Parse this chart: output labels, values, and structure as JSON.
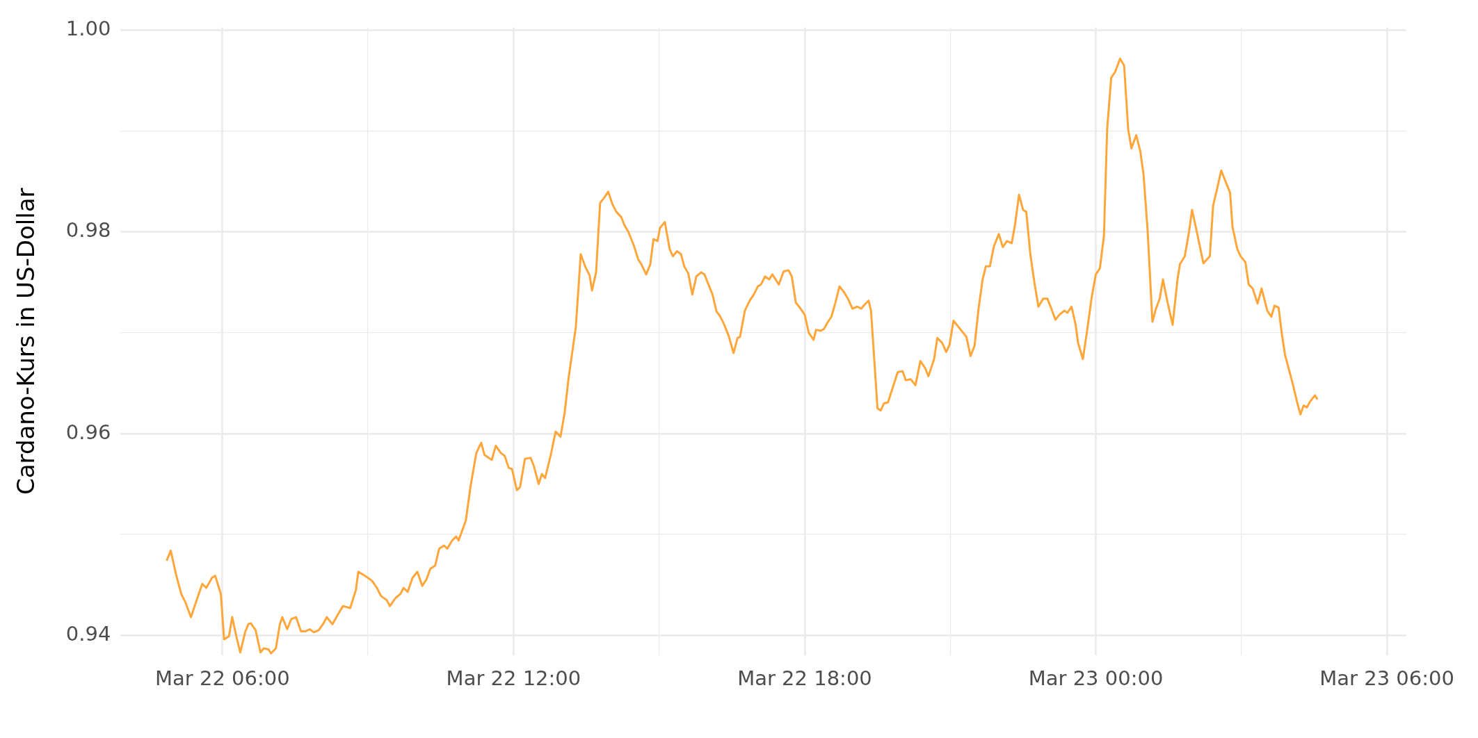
{
  "chart_data": {
    "type": "line",
    "ylabel": "Cardano-Kurs in US-Dollar",
    "x": [
      "--03-22T04:51",
      "--03-22T04:56",
      "--03-22T05:03",
      "--03-22T05:09",
      "--03-22T05:14",
      "--03-22T05:21",
      "--03-22T05:29",
      "--03-22T05:35",
      "--03-22T05:40",
      "--03-22T05:47",
      "--03-22T05:51",
      "--03-22T05:58",
      "--03-22T06:02",
      "--03-22T06:08",
      "--03-22T06:12",
      "--03-22T06:18",
      "--03-22T06:22",
      "--03-22T06:28",
      "--03-22T06:32",
      "--03-22T06:35",
      "--03-22T06:41",
      "--03-22T06:47",
      "--03-22T06:51",
      "--03-22T06:57",
      "--03-22T07:00",
      "--03-22T07:06",
      "--03-22T07:11",
      "--03-22T07:14",
      "--03-22T07:20",
      "--03-22T07:25",
      "--03-22T07:31",
      "--03-22T07:37",
      "--03-22T07:43",
      "--03-22T07:48",
      "--03-22T07:53",
      "--03-22T07:59",
      "--03-22T08:05",
      "--03-22T08:09",
      "--03-22T08:16",
      "--03-22T08:23",
      "--03-22T08:29",
      "--03-22T08:38",
      "--03-22T08:45",
      "--03-22T08:48",
      "--03-22T08:58",
      "--03-22T09:05",
      "--03-22T09:11",
      "--03-22T09:16",
      "--03-22T09:23",
      "--03-22T09:27",
      "--03-22T09:34",
      "--03-22T09:40",
      "--03-22T09:44",
      "--03-22T09:49",
      "--03-22T09:55",
      "--03-22T10:01",
      "--03-22T10:07",
      "--03-22T10:12",
      "--03-22T10:17",
      "--03-22T10:23",
      "--03-22T10:28",
      "--03-22T10:34",
      "--03-22T10:38",
      "--03-22T10:44",
      "--03-22T10:49",
      "--03-22T10:52",
      "--03-22T11:01",
      "--03-22T11:07",
      "--03-22T11:14",
      "--03-22T11:20",
      "--03-22T11:24",
      "--03-22T11:31",
      "--03-22T11:33",
      "--03-22T11:38",
      "--03-22T11:44",
      "--03-22T11:49",
      "--03-22T11:54",
      "--03-22T11:58",
      "--03-22T12:04",
      "--03-22T12:08",
      "--03-22T12:14",
      "--03-22T12:21",
      "--03-22T12:25",
      "--03-22T12:31",
      "--03-22T12:35",
      "--03-22T12:39",
      "--03-22T12:46",
      "--03-22T12:52",
      "--03-22T12:58",
      "--03-22T13:03",
      "--03-22T13:08",
      "--03-22T13:17",
      "--03-22T13:23",
      "--03-22T13:29",
      "--03-22T13:34",
      "--03-22T13:37",
      "--03-22T13:42",
      "--03-22T13:47",
      "--03-22T13:52",
      "--03-22T13:57",
      "--03-22T14:02",
      "--03-22T14:07",
      "--03-22T14:13",
      "--03-22T14:17",
      "--03-22T14:22",
      "--03-22T14:29",
      "--03-22T14:34",
      "--03-22T14:38",
      "--03-22T14:44",
      "--03-22T14:49",
      "--03-22T14:53",
      "--03-22T14:58",
      "--03-22T15:01",
      "--03-22T15:07",
      "--03-22T15:13",
      "--03-22T15:17",
      "--03-22T15:22",
      "--03-22T15:27",
      "--03-22T15:31",
      "--03-22T15:36",
      "--03-22T15:41",
      "--03-22T15:46",
      "--03-22T15:52",
      "--03-22T15:56",
      "--03-22T16:01",
      "--03-22T16:06",
      "--03-22T16:11",
      "--03-22T16:15",
      "--03-22T16:20",
      "--03-22T16:26",
      "--03-22T16:32",
      "--03-22T16:37",
      "--03-22T16:40",
      "--03-22T16:46",
      "--03-22T16:52",
      "--03-22T16:57",
      "--03-22T17:02",
      "--03-22T17:06",
      "--03-22T17:11",
      "--03-22T17:16",
      "--03-22T17:20",
      "--03-22T17:28",
      "--03-22T17:34",
      "--03-22T17:40",
      "--03-22T17:44",
      "--03-22T17:49",
      "--03-22T17:54",
      "--03-22T18:00",
      "--03-22T18:05",
      "--03-22T18:11",
      "--03-22T18:14",
      "--03-22T18:20",
      "--03-22T18:24",
      "--03-22T18:28",
      "--03-22T18:33",
      "--03-22T18:38",
      "--03-22T18:43",
      "--03-22T18:49",
      "--03-22T18:54",
      "--03-22T18:59",
      "--03-22T19:05",
      "--03-22T19:10",
      "--03-22T19:13",
      "--03-22T19:19",
      "--03-22T19:22",
      "--03-22T19:30",
      "--03-22T19:34",
      "--03-22T19:38",
      "--03-22T19:43",
      "--03-22T19:49",
      "--03-22T19:55",
      "--03-22T20:01",
      "--03-22T20:05",
      "--03-22T20:11",
      "--03-22T20:17",
      "--03-22T20:23",
      "--03-22T20:29",
      "--03-22T20:33",
      "--03-22T20:40",
      "--03-22T20:44",
      "--03-22T20:50",
      "--03-22T20:55",
      "--03-22T20:59",
      "--03-22T21:04",
      "--03-22T21:14",
      "--03-22T21:20",
      "--03-22T21:25",
      "--03-22T21:30",
      "--03-22T21:35",
      "--03-22T21:40",
      "--03-22T21:44",
      "--03-22T21:49",
      "--03-22T21:54",
      "--03-22T22:00",
      "--03-22T22:05",
      "--03-22T22:10",
      "--03-22T22:16",
      "--03-22T22:20",
      "--03-22T22:25",
      "--03-22T22:30",
      "--03-22T22:34",
      "--03-22T22:39",
      "--03-22T22:44",
      "--03-22T22:49",
      "--03-22T22:55",
      "--03-22T23:00",
      "--03-22T23:05",
      "--03-22T23:10",
      "--03-22T23:15",
      "--03-22T23:21",
      "--03-22T23:25",
      "--03-22T23:30",
      "--03-22T23:35",
      "--03-22T23:38",
      "--03-22T23:44",
      "--03-22T23:49",
      "--03-22T23:55",
      "--03-23T00:00",
      "--03-23T00:05",
      "--03-23T00:10",
      "--03-23T00:14",
      "--03-23T00:19",
      "--03-23T00:24",
      "--03-23T00:30",
      "--03-23T00:35",
      "--03-23T00:40",
      "--03-23T00:44",
      "--03-23T00:50",
      "--03-23T00:55",
      "--03-23T00:59",
      "--03-23T01:04",
      "--03-23T01:10",
      "--03-23T01:14",
      "--03-23T01:19",
      "--03-23T01:23",
      "--03-23T01:29",
      "--03-23T01:35",
      "--03-23T01:41",
      "--03-23T01:44",
      "--03-23T01:50",
      "--03-23T01:55",
      "--03-23T01:59",
      "--03-23T02:06",
      "--03-23T02:13",
      "--03-23T02:21",
      "--03-23T02:25",
      "--03-23T02:30",
      "--03-23T02:35",
      "--03-23T02:46",
      "--03-23T02:49",
      "--03-23T02:55",
      "--03-23T02:59",
      "--03-23T03:05",
      "--03-23T03:09",
      "--03-23T03:14",
      "--03-23T03:20",
      "--03-23T03:25",
      "--03-23T03:32",
      "--03-23T03:37",
      "--03-23T03:41",
      "--03-23T03:46",
      "--03-23T03:50",
      "--03-23T03:54",
      "--03-23T03:59",
      "--03-23T04:03",
      "--03-23T04:09",
      "--03-23T04:13",
      "--03-23T04:17",
      "--03-23T04:21",
      "--03-23T04:25",
      "--03-23T04:31",
      "--03-23T04:34"
    ],
    "series": [
      {
        "color": "#ffa63a",
        "values": [
          0.9474,
          0.9484,
          0.9459,
          0.9441,
          0.9433,
          0.9418,
          0.9437,
          0.9451,
          0.9447,
          0.9457,
          0.9459,
          0.9441,
          0.9396,
          0.9399,
          0.9418,
          0.9396,
          0.9383,
          0.9403,
          0.9411,
          0.9412,
          0.9405,
          0.9383,
          0.9387,
          0.9386,
          0.9382,
          0.9387,
          0.9411,
          0.9418,
          0.9406,
          0.9416,
          0.9418,
          0.9404,
          0.9404,
          0.9406,
          0.9403,
          0.9405,
          0.9412,
          0.9418,
          0.9411,
          0.9421,
          0.9429,
          0.9427,
          0.9445,
          0.9463,
          0.9458,
          0.9454,
          0.9447,
          0.9439,
          0.9435,
          0.9429,
          0.9437,
          0.9441,
          0.9447,
          0.9443,
          0.9457,
          0.9463,
          0.9449,
          0.9455,
          0.9466,
          0.9469,
          0.9486,
          0.9489,
          0.9486,
          0.9494,
          0.9498,
          0.9494,
          0.9514,
          0.9549,
          0.9581,
          0.9591,
          0.9579,
          0.9575,
          0.9574,
          0.9588,
          0.9581,
          0.9578,
          0.9566,
          0.9565,
          0.9544,
          0.9547,
          0.9575,
          0.9576,
          0.9568,
          0.955,
          0.956,
          0.9556,
          0.9579,
          0.9602,
          0.9597,
          0.962,
          0.9655,
          0.9706,
          0.9778,
          0.9765,
          0.9757,
          0.9742,
          0.976,
          0.9829,
          0.9834,
          0.984,
          0.9828,
          0.982,
          0.9815,
          0.9807,
          0.98,
          0.9786,
          0.9773,
          0.9768,
          0.9758,
          0.9768,
          0.9793,
          0.9791,
          0.9804,
          0.981,
          0.9783,
          0.9776,
          0.9781,
          0.9778,
          0.9766,
          0.9759,
          0.9738,
          0.9756,
          0.976,
          0.9758,
          0.9748,
          0.9738,
          0.9721,
          0.9717,
          0.9709,
          0.9697,
          0.968,
          0.9695,
          0.9696,
          0.9722,
          0.9732,
          0.9738,
          0.9746,
          0.9748,
          0.9756,
          0.9753,
          0.9758,
          0.9748,
          0.9761,
          0.9762,
          0.9756,
          0.973,
          0.9725,
          0.9718,
          0.97,
          0.9693,
          0.9703,
          0.9702,
          0.9704,
          0.971,
          0.9716,
          0.973,
          0.9746,
          0.974,
          0.9733,
          0.9724,
          0.9726,
          0.9724,
          0.9727,
          0.9732,
          0.9722,
          0.9625,
          0.9623,
          0.963,
          0.9631,
          0.9646,
          0.9661,
          0.9662,
          0.9653,
          0.9654,
          0.9648,
          0.9672,
          0.9665,
          0.9657,
          0.9674,
          0.9695,
          0.969,
          0.9681,
          0.9688,
          0.9712,
          0.9702,
          0.9696,
          0.9677,
          0.9687,
          0.9724,
          0.9753,
          0.9766,
          0.9766,
          0.9786,
          0.9798,
          0.9785,
          0.9791,
          0.9789,
          0.9807,
          0.9837,
          0.9822,
          0.982,
          0.9778,
          0.975,
          0.9726,
          0.9734,
          0.9734,
          0.9724,
          0.9713,
          0.9718,
          0.9722,
          0.972,
          0.9726,
          0.9708,
          0.969,
          0.9674,
          0.9701,
          0.9736,
          0.9758,
          0.9764,
          0.9796,
          0.9902,
          0.9953,
          0.9959,
          0.9972,
          0.9965,
          0.9902,
          0.9883,
          0.9896,
          0.988,
          0.9857,
          0.9802,
          0.9711,
          0.9723,
          0.9734,
          0.9753,
          0.9729,
          0.9708,
          0.9753,
          0.9768,
          0.9776,
          0.9799,
          0.9822,
          0.9796,
          0.9769,
          0.9776,
          0.9826,
          0.9843,
          0.9861,
          0.9839,
          0.9805,
          0.9783,
          0.9776,
          0.977,
          0.9748,
          0.9744,
          0.9729,
          0.9744,
          0.9722,
          0.9716,
          0.9727,
          0.9725,
          0.9699,
          0.9678,
          0.9663,
          0.9651,
          0.9631,
          0.9619,
          0.9628,
          0.9626,
          0.9632,
          0.9638,
          0.9634
        ]
      }
    ],
    "xlim": [
      "--03-22T03:54",
      "--03-23T06:24"
    ],
    "xticks": [
      {
        "value": "--03-22T06:00",
        "label": "Mar 22 06:00"
      },
      {
        "value": "--03-22T09:00",
        "label": null
      },
      {
        "value": "--03-22T12:00",
        "label": "Mar 22 12:00"
      },
      {
        "value": "--03-22T15:00",
        "label": null
      },
      {
        "value": "--03-22T18:00",
        "label": "Mar 22 18:00"
      },
      {
        "value": "--03-22T21:00",
        "label": null
      },
      {
        "value": "--03-23T00:00",
        "label": "Mar 23 00:00"
      },
      {
        "value": "--03-23T03:00",
        "label": null
      },
      {
        "value": "--03-23T06:00",
        "label": "Mar 23 06:00"
      }
    ],
    "ylim": [
      0.938,
      1.0003
    ],
    "yticks": [
      0.94,
      {
        "value": 0.95,
        "label": null
      },
      0.96,
      {
        "value": 0.97,
        "label": null
      },
      0.98,
      {
        "value": 0.99,
        "label": null
      },
      {
        "value": 1,
        "label": "1.00"
      }
    ],
    "grid": true,
    "legend": false,
    "marker": "none"
  }
}
